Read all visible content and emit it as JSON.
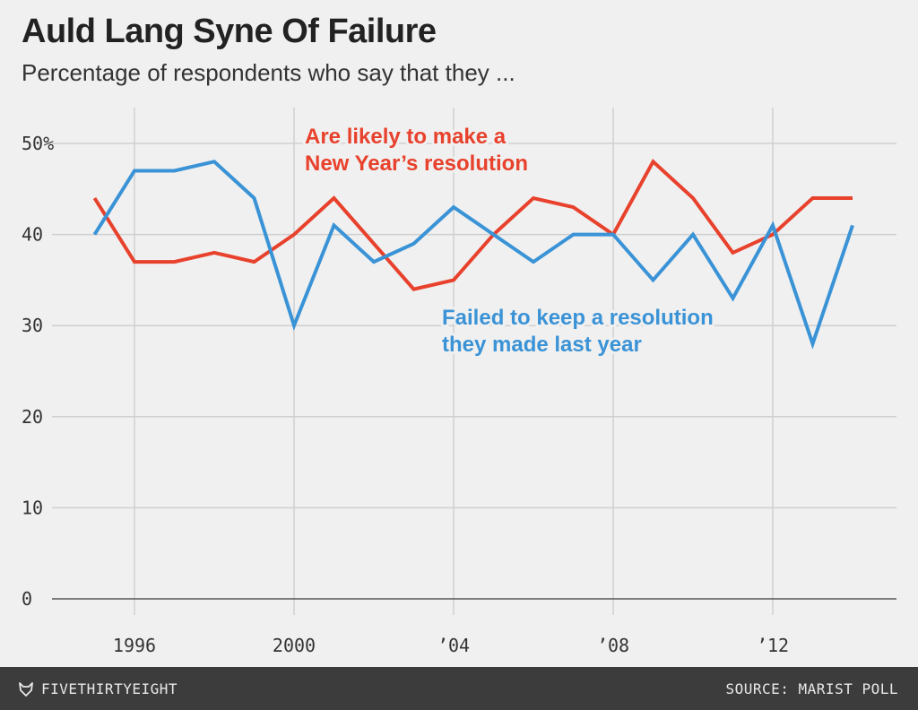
{
  "header": {
    "title": "Auld Lang Syne Of Failure",
    "subtitle": "Percentage of respondents who say that they ..."
  },
  "footer": {
    "brand": "FIVETHIRTYEIGHT",
    "source": "SOURCE: MARIST POLL",
    "brand_icon": "fox-icon"
  },
  "chart_data": {
    "type": "line",
    "title": "Auld Lang Syne Of Failure",
    "subtitle": "Percentage of respondents who say that they ...",
    "x": [
      1995,
      1996,
      1997,
      1998,
      1999,
      2000,
      2001,
      2002,
      2003,
      2004,
      2005,
      2006,
      2007,
      2008,
      2009,
      2010,
      2011,
      2012,
      2013,
      2014
    ],
    "xlim": [
      1994.5,
      2014.5
    ],
    "ylim": [
      0,
      53
    ],
    "x_ticks": [
      {
        "value": 1996,
        "label": "1996"
      },
      {
        "value": 2000,
        "label": "2000"
      },
      {
        "value": 2004,
        "label": "’04"
      },
      {
        "value": 2008,
        "label": "’08"
      },
      {
        "value": 2012,
        "label": "’12"
      }
    ],
    "y_ticks": [
      {
        "value": 0,
        "label": "0"
      },
      {
        "value": 10,
        "label": "10"
      },
      {
        "value": 20,
        "label": "20"
      },
      {
        "value": 30,
        "label": "30"
      },
      {
        "value": 40,
        "label": "40"
      },
      {
        "value": 50,
        "label": "50%"
      }
    ],
    "grid": true,
    "series": [
      {
        "name": "Are likely to make a New Year’s resolution",
        "label_lines": [
          "Are likely to make a",
          "New Year’s resolution"
        ],
        "label_position": "top-center",
        "color": "#e8412c",
        "values": [
          44,
          37,
          37,
          38,
          37,
          40,
          44,
          39,
          34,
          35,
          40,
          44,
          43,
          40,
          48,
          44,
          38,
          40,
          44,
          44
        ]
      },
      {
        "name": "Failed to keep a resolution they made last year",
        "label_lines": [
          "Failed to keep a resolution",
          "they made last year"
        ],
        "label_position": "center-right",
        "color": "#3a93d6",
        "values": [
          40,
          47,
          47,
          48,
          44,
          30,
          41,
          37,
          39,
          43,
          40,
          37,
          40,
          40,
          35,
          40,
          33,
          41,
          28,
          41
        ]
      }
    ]
  }
}
